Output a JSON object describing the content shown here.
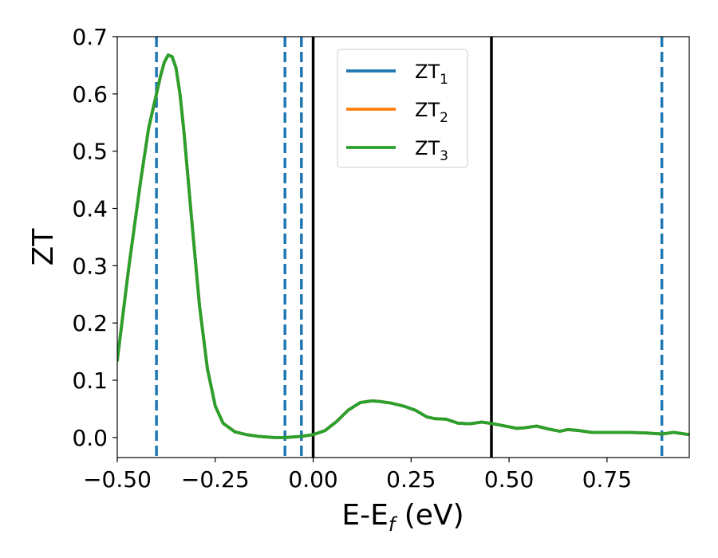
{
  "chart_data": {
    "type": "line",
    "xlabel": "E-E",
    "xlabel_sub": "f",
    "xlabel_unit": " (eV)",
    "ylabel": "ZT",
    "xlim": [
      -0.5,
      0.96
    ],
    "ylim": [
      -0.035,
      0.7
    ],
    "x_ticks": [
      -0.5,
      -0.25,
      0.0,
      0.25,
      0.5,
      0.75
    ],
    "x_tick_labels": [
      "−0.50",
      "−0.25",
      "0.00",
      "0.25",
      "0.50",
      "0.75"
    ],
    "y_ticks": [
      0.0,
      0.1,
      0.2,
      0.3,
      0.4,
      0.5,
      0.6,
      0.7
    ],
    "y_tick_labels": [
      "0.0",
      "0.1",
      "0.2",
      "0.3",
      "0.4",
      "0.5",
      "0.6",
      "0.7"
    ],
    "grid": false,
    "legend_position": "top-center",
    "legend": [
      {
        "base": "ZT",
        "sub": "1",
        "color": "#1f77b4"
      },
      {
        "base": "ZT",
        "sub": "2",
        "color": "#ff7f0e"
      },
      {
        "base": "ZT",
        "sub": "3",
        "color": "#2ca02c"
      }
    ],
    "x": [
      -0.5,
      -0.47,
      -0.44,
      -0.42,
      -0.4,
      -0.39,
      -0.38,
      -0.37,
      -0.36,
      -0.35,
      -0.34,
      -0.33,
      -0.31,
      -0.29,
      -0.27,
      -0.25,
      -0.23,
      -0.2,
      -0.17,
      -0.14,
      -0.1,
      -0.07,
      -0.05,
      -0.03,
      0.0,
      0.03,
      0.06,
      0.09,
      0.12,
      0.15,
      0.17,
      0.2,
      0.23,
      0.26,
      0.29,
      0.31,
      0.34,
      0.37,
      0.4,
      0.43,
      0.46,
      0.49,
      0.52,
      0.54,
      0.57,
      0.6,
      0.63,
      0.65,
      0.68,
      0.71,
      0.75,
      0.8,
      0.85,
      0.89,
      0.92,
      0.96
    ],
    "series": [
      {
        "values": [
          0.135,
          0.3,
          0.45,
          0.54,
          0.6,
          0.63,
          0.655,
          0.668,
          0.665,
          0.645,
          0.6,
          0.535,
          0.38,
          0.23,
          0.12,
          0.055,
          0.025,
          0.01,
          0.005,
          0.002,
          0.0,
          0.0,
          0.001,
          0.002,
          0.005,
          0.012,
          0.028,
          0.048,
          0.061,
          0.064,
          0.063,
          0.06,
          0.055,
          0.048,
          0.036,
          0.033,
          0.032,
          0.025,
          0.024,
          0.027,
          0.024,
          0.02,
          0.016,
          0.017,
          0.02,
          0.015,
          0.011,
          0.014,
          0.012,
          0.009,
          0.009,
          0.009,
          0.008,
          0.006,
          0.009,
          0.005
        ],
        "color": "#1f77b4"
      },
      {
        "values": [
          0.135,
          0.3,
          0.45,
          0.54,
          0.6,
          0.63,
          0.655,
          0.668,
          0.665,
          0.645,
          0.6,
          0.535,
          0.38,
          0.23,
          0.12,
          0.055,
          0.025,
          0.01,
          0.005,
          0.002,
          0.0,
          0.0,
          0.001,
          0.002,
          0.005,
          0.012,
          0.028,
          0.048,
          0.061,
          0.064,
          0.063,
          0.06,
          0.055,
          0.048,
          0.036,
          0.033,
          0.032,
          0.025,
          0.024,
          0.027,
          0.024,
          0.02,
          0.016,
          0.017,
          0.02,
          0.015,
          0.011,
          0.014,
          0.012,
          0.009,
          0.009,
          0.009,
          0.008,
          0.006,
          0.009,
          0.005
        ],
        "color": "#ff7f0e"
      },
      {
        "values": [
          0.135,
          0.3,
          0.45,
          0.54,
          0.6,
          0.63,
          0.655,
          0.668,
          0.665,
          0.645,
          0.6,
          0.535,
          0.38,
          0.23,
          0.12,
          0.055,
          0.025,
          0.01,
          0.005,
          0.002,
          0.0,
          0.0,
          0.001,
          0.002,
          0.005,
          0.012,
          0.028,
          0.048,
          0.061,
          0.064,
          0.063,
          0.06,
          0.055,
          0.048,
          0.036,
          0.033,
          0.032,
          0.025,
          0.024,
          0.027,
          0.024,
          0.02,
          0.016,
          0.017,
          0.02,
          0.015,
          0.011,
          0.014,
          0.012,
          0.009,
          0.009,
          0.009,
          0.008,
          0.006,
          0.009,
          0.005
        ],
        "color": "#2ca02c"
      }
    ],
    "vertical_lines": [
      {
        "x": -0.4,
        "style": "dashed",
        "color": "#1f77b4"
      },
      {
        "x": -0.072,
        "style": "dashed",
        "color": "#1f77b4"
      },
      {
        "x": -0.03,
        "style": "dashed",
        "color": "#1f77b4"
      },
      {
        "x": 0.0,
        "style": "solid",
        "color": "#000000"
      },
      {
        "x": 0.455,
        "style": "solid",
        "color": "#000000"
      },
      {
        "x": 0.89,
        "style": "dashed",
        "color": "#1f77b4"
      }
    ]
  }
}
